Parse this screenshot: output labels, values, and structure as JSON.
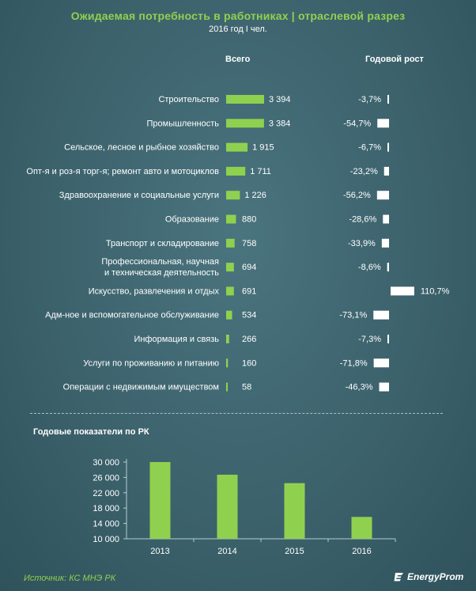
{
  "header": {
    "title": "Ожидаемая потребность в работниках | отраслевой разрез",
    "subtitle": "2016 год I чел."
  },
  "columns": {
    "total": "Всего",
    "growth": "Годовой рост"
  },
  "colors": {
    "background": "#3e6670",
    "accent_green": "#8fd14f",
    "bar_white": "#ffffff"
  },
  "chart_data": [
    {
      "type": "bar",
      "orientation": "horizontal",
      "title": "Ожидаемая потребность в работниках | отраслевой разрез",
      "subtitle": "2016 год I чел.",
      "categories": [
        [
          "Строительство"
        ],
        [
          "Промышленность"
        ],
        [
          "Сельское, лесное и рыбное хозяйство"
        ],
        [
          "Опт-я и роз-я торг-я; ремонт авто и мотоциклов"
        ],
        [
          "Здравоохранение и социальные услуги"
        ],
        [
          "Образование"
        ],
        [
          "Транспорт и складирование"
        ],
        [
          "Профессиональная, научная",
          "и техническая деятельность"
        ],
        [
          "Искусство, развлечения и отдых"
        ],
        [
          "Адм-ное и вспомогательное обслуживание"
        ],
        [
          "Информация и связь"
        ],
        [
          "Услуги по проживанию и питанию"
        ],
        [
          "Операции с недвижимым имуществом"
        ]
      ],
      "series": [
        {
          "name": "Всего",
          "values": [
            3394,
            3384,
            1915,
            1711,
            1226,
            880,
            758,
            694,
            691,
            534,
            266,
            160,
            58
          ],
          "labels": [
            "3 394",
            "3 384",
            "1 915",
            "1 711",
            "1 226",
            "880",
            "758",
            "694",
            "691",
            "534",
            "266",
            "160",
            "58"
          ]
        },
        {
          "name": "Годовой рост",
          "values": [
            -3.7,
            -54.7,
            -6.7,
            -23.2,
            -56.2,
            -28.6,
            -33.9,
            -8.6,
            110.7,
            -73.1,
            -7.3,
            -71.8,
            -46.3
          ],
          "labels": [
            "-3,7%",
            "-54,7%",
            "-6,7%",
            "-23,2%",
            "-56,2%",
            "-28,6%",
            "-33,9%",
            "-8,6%",
            "110,7%",
            "-73,1%",
            "-7,3%",
            "-71,8%",
            "-46,3%"
          ]
        }
      ]
    },
    {
      "type": "bar",
      "title": "Годовые показатели по РК",
      "categories": [
        "2013",
        "2014",
        "2015",
        "2016"
      ],
      "values": [
        30000,
        26700,
        24500,
        15700
      ],
      "ylim": [
        10000,
        30000
      ],
      "yticks": [
        "30 000",
        "26 000",
        "22 000",
        "18 000",
        "14 000",
        "10 000"
      ],
      "ytick_values": [
        30000,
        26000,
        22000,
        18000,
        14000,
        10000
      ]
    }
  ],
  "footer": {
    "source": "Источник: КС МНЭ РК",
    "logo": "EnergyProm"
  }
}
